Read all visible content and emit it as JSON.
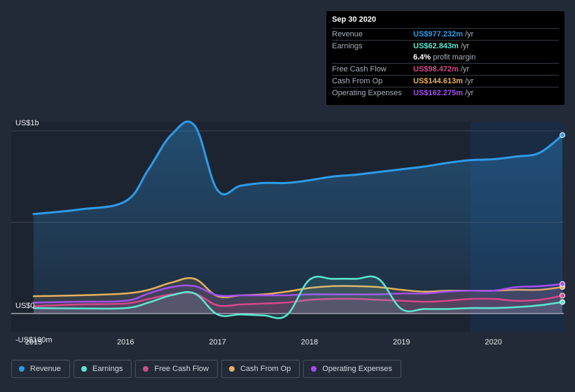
{
  "tooltip": {
    "date": "Sep 30 2020",
    "rows": [
      {
        "label": "Revenue",
        "value": "US$977.232m",
        "unit": "/yr",
        "color": "#2e9be8"
      },
      {
        "label": "Earnings",
        "value": "US$62.843m",
        "unit": "/yr",
        "color": "#5be8d2"
      },
      {
        "label": "",
        "value": "6.4%",
        "unit": "profit margin",
        "color": "#ffffff"
      },
      {
        "label": "Free Cash Flow",
        "value": "US$98.472m",
        "unit": "/yr",
        "color": "#d6478b"
      },
      {
        "label": "Cash From Op",
        "value": "US$144.613m",
        "unit": "/yr",
        "color": "#e8b15e"
      },
      {
        "label": "Operating Expenses",
        "value": "US$162.275m",
        "unit": "/yr",
        "color": "#a34ff0"
      }
    ]
  },
  "legend": [
    {
      "label": "Revenue",
      "color": "#2e9be8"
    },
    {
      "label": "Earnings",
      "color": "#5be8d2"
    },
    {
      "label": "Free Cash Flow",
      "color": "#d6478b"
    },
    {
      "label": "Cash From Op",
      "color": "#e8b15e"
    },
    {
      "label": "Operating Expenses",
      "color": "#a34ff0"
    }
  ],
  "chart_data": {
    "type": "area",
    "title": "",
    "xlabel": "",
    "ylabel": "",
    "y_tick_labels": [
      "US$1b",
      "US$0",
      "-US$100m"
    ],
    "x_tick_labels": [
      "2015",
      "2016",
      "2017",
      "2018",
      "2019",
      "2020"
    ],
    "ylim": [
      -100,
      1050
    ],
    "xlim": [
      2015.0,
      2020.75
    ],
    "x_ticks": [
      2015,
      2016,
      2017,
      2018,
      2019,
      2020
    ],
    "y_ticks": [
      1000,
      0,
      -100
    ],
    "highlight_from": 2019.75,
    "series": [
      {
        "name": "Revenue",
        "color": "#2e9be8",
        "x": [
          2015.0,
          2015.5,
          2016.0,
          2016.25,
          2016.5,
          2016.75,
          2017.0,
          2017.25,
          2017.5,
          2017.75,
          2018.0,
          2018.25,
          2018.5,
          2018.75,
          2019.0,
          2019.25,
          2019.5,
          2019.75,
          2020.0,
          2020.25,
          2020.5,
          2020.75
        ],
        "y": [
          545,
          570,
          615,
          790,
          980,
          1030,
          675,
          700,
          715,
          715,
          730,
          750,
          760,
          775,
          790,
          805,
          825,
          840,
          845,
          860,
          880,
          977
        ]
      },
      {
        "name": "Earnings",
        "color": "#5be8d2",
        "x": [
          2015.0,
          2015.5,
          2016.0,
          2016.25,
          2016.5,
          2016.75,
          2017.0,
          2017.25,
          2017.5,
          2017.75,
          2018.0,
          2018.25,
          2018.5,
          2018.75,
          2019.0,
          2019.25,
          2019.5,
          2019.75,
          2020.0,
          2020.25,
          2020.5,
          2020.75
        ],
        "y": [
          30,
          28,
          30,
          60,
          100,
          110,
          -5,
          -5,
          -10,
          -10,
          185,
          190,
          190,
          190,
          25,
          25,
          25,
          30,
          30,
          35,
          45,
          63
        ]
      },
      {
        "name": "Free Cash Flow",
        "color": "#d6478b",
        "x": [
          2015.0,
          2015.5,
          2016.0,
          2016.25,
          2016.5,
          2016.75,
          2017.0,
          2017.25,
          2017.5,
          2017.75,
          2018.0,
          2018.25,
          2018.5,
          2018.75,
          2019.0,
          2019.25,
          2019.5,
          2019.75,
          2020.0,
          2020.25,
          2020.5,
          2020.75
        ],
        "y": [
          40,
          50,
          55,
          80,
          105,
          110,
          45,
          50,
          55,
          60,
          75,
          80,
          80,
          75,
          70,
          65,
          70,
          80,
          80,
          70,
          75,
          98
        ]
      },
      {
        "name": "Cash From Op",
        "color": "#e8b15e",
        "x": [
          2015.0,
          2015.5,
          2016.0,
          2016.25,
          2016.5,
          2016.75,
          2017.0,
          2017.25,
          2017.5,
          2017.75,
          2018.0,
          2018.25,
          2018.5,
          2018.75,
          2019.0,
          2019.25,
          2019.5,
          2019.75,
          2020.0,
          2020.25,
          2020.5,
          2020.75
        ],
        "y": [
          95,
          100,
          110,
          130,
          170,
          190,
          95,
          100,
          105,
          120,
          140,
          150,
          150,
          145,
          130,
          120,
          125,
          125,
          125,
          130,
          130,
          145
        ]
      },
      {
        "name": "Operating Expenses",
        "color": "#a34ff0",
        "x": [
          2015.0,
          2015.5,
          2016.0,
          2016.25,
          2016.5,
          2016.75,
          2017.0,
          2017.25,
          2017.5,
          2017.75,
          2018.0,
          2018.25,
          2018.5,
          2018.75,
          2019.0,
          2019.25,
          2019.5,
          2019.75,
          2020.0,
          2020.25,
          2020.5,
          2020.75
        ],
        "y": [
          60,
          65,
          70,
          110,
          145,
          150,
          100,
          100,
          100,
          100,
          105,
          105,
          105,
          105,
          110,
          110,
          120,
          125,
          125,
          145,
          150,
          162
        ]
      }
    ]
  }
}
